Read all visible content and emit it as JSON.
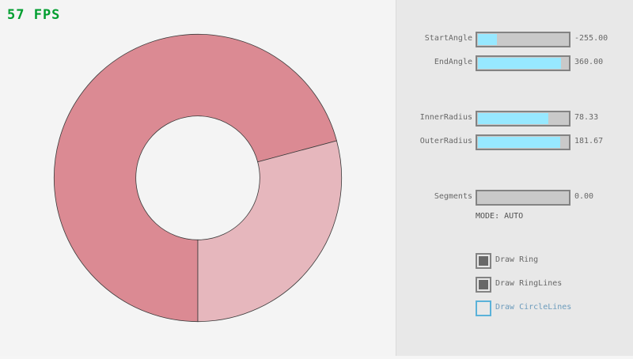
{
  "fps": "57 FPS",
  "ring": {
    "start_angle": -255.0,
    "end_angle": 360.0,
    "inner_radius": 78.33,
    "outer_radius": 181.67,
    "color_main": "#db8a93",
    "color_faded": "#e6b7bd",
    "outline": "#3a3a3a"
  },
  "controls": {
    "sliders": [
      {
        "label": "StartAngle",
        "value": "-255.00",
        "fill": 0.21
      },
      {
        "label": "EndAngle",
        "value": "360.00",
        "fill": 0.92
      },
      {
        "label": "InnerRadius",
        "value": "78.33",
        "fill": 0.78
      },
      {
        "label": "OuterRadius",
        "value": "181.67",
        "fill": 0.91
      },
      {
        "label": "Segments",
        "value": "0.00",
        "fill": 0
      }
    ],
    "mode": "MODE: AUTO",
    "checkboxes": [
      {
        "label": "Draw Ring",
        "checked": true
      },
      {
        "label": "Draw RingLines",
        "checked": true
      },
      {
        "label": "Draw CircleLines",
        "checked": false
      }
    ]
  }
}
